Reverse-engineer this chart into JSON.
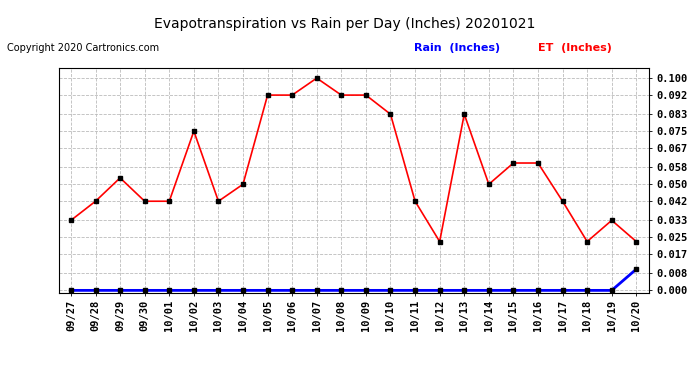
{
  "title": "Evapotranspiration vs Rain per Day (Inches) 20201021",
  "copyright": "Copyright 2020 Cartronics.com",
  "legend_rain": "Rain  (Inches)",
  "legend_et": "ET  (Inches)",
  "x_labels": [
    "09/27",
    "09/28",
    "09/29",
    "09/30",
    "10/01",
    "10/02",
    "10/03",
    "10/04",
    "10/05",
    "10/06",
    "10/07",
    "10/08",
    "10/09",
    "10/10",
    "10/11",
    "10/12",
    "10/13",
    "10/14",
    "10/15",
    "10/16",
    "10/17",
    "10/18",
    "10/19",
    "10/20"
  ],
  "et_values": [
    0.033,
    0.042,
    0.053,
    0.042,
    0.042,
    0.075,
    0.042,
    0.05,
    0.092,
    0.092,
    0.1,
    0.092,
    0.092,
    0.083,
    0.042,
    0.023,
    0.083,
    0.05,
    0.06,
    0.06,
    0.042,
    0.023,
    0.033,
    0.023
  ],
  "rain_values": [
    0.0,
    0.0,
    0.0,
    0.0,
    0.0,
    0.0,
    0.0,
    0.0,
    0.0,
    0.0,
    0.0,
    0.0,
    0.0,
    0.0,
    0.0,
    0.0,
    0.0,
    0.0,
    0.0,
    0.0,
    0.0,
    0.0,
    0.0,
    0.01
  ],
  "ylim": [
    -0.001,
    0.105
  ],
  "yticks": [
    0.0,
    0.008,
    0.017,
    0.025,
    0.033,
    0.042,
    0.05,
    0.058,
    0.067,
    0.075,
    0.083,
    0.092,
    0.1
  ],
  "et_color": "#ff0000",
  "rain_color": "#0000ff",
  "marker_color": "#000000",
  "bg_color": "#ffffff",
  "grid_color": "#bbbbbb",
  "title_color": "#000000",
  "copyright_color": "#000000",
  "legend_rain_color": "#0000ff",
  "legend_et_color": "#ff0000",
  "title_fontsize": 10,
  "tick_fontsize": 7.5,
  "copyright_fontsize": 7
}
